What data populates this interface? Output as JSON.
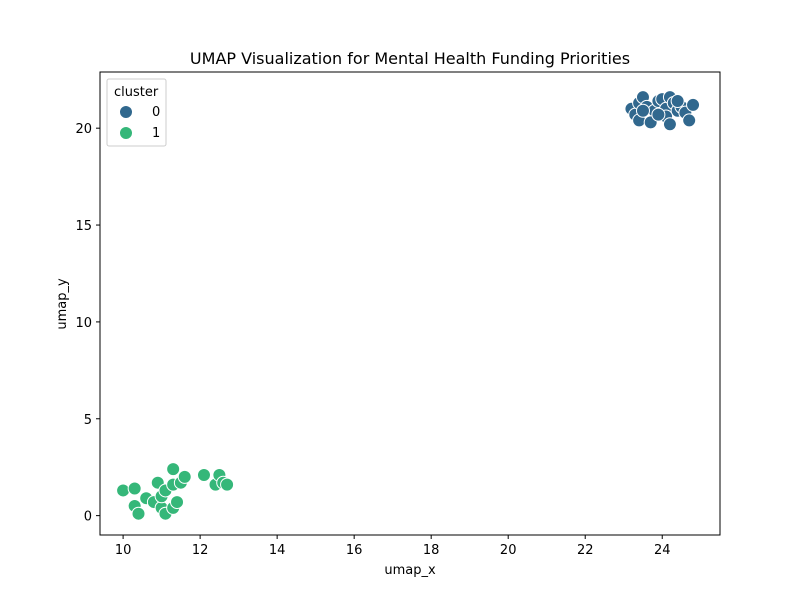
{
  "chart_data": {
    "type": "scatter",
    "title": "UMAP Visualization for Mental Health Funding Priorities",
    "xlabel": "umap_x",
    "ylabel": "umap_y",
    "xlim": [
      9.4,
      25.5
    ],
    "ylim": [
      -1.0,
      22.9
    ],
    "xticks": [
      10,
      12,
      14,
      16,
      18,
      20,
      22,
      24
    ],
    "yticks": [
      0,
      5,
      10,
      15,
      20
    ],
    "grid": false,
    "legend": {
      "title": "cluster",
      "placement": "top-left"
    },
    "series": [
      {
        "name": "0",
        "color": "#31688e",
        "points": [
          [
            23.2,
            21.0
          ],
          [
            23.3,
            20.7
          ],
          [
            23.4,
            21.3
          ],
          [
            23.5,
            21.6
          ],
          [
            23.6,
            21.1
          ],
          [
            23.8,
            20.9
          ],
          [
            23.9,
            21.4
          ],
          [
            24.0,
            21.5
          ],
          [
            24.1,
            21.0
          ],
          [
            24.2,
            21.6
          ],
          [
            24.3,
            21.3
          ],
          [
            24.4,
            20.9
          ],
          [
            24.5,
            21.1
          ],
          [
            24.6,
            20.8
          ],
          [
            24.8,
            21.2
          ],
          [
            23.4,
            20.4
          ],
          [
            23.7,
            20.3
          ],
          [
            24.1,
            20.6
          ],
          [
            24.2,
            20.2
          ],
          [
            24.7,
            20.4
          ],
          [
            23.5,
            20.9
          ],
          [
            23.9,
            20.7
          ],
          [
            24.4,
            21.4
          ]
        ]
      },
      {
        "name": "1",
        "color": "#35b779",
        "points": [
          [
            10.0,
            1.3
          ],
          [
            10.3,
            1.4
          ],
          [
            10.3,
            0.5
          ],
          [
            10.4,
            0.1
          ],
          [
            10.6,
            0.9
          ],
          [
            10.8,
            0.7
          ],
          [
            10.9,
            1.7
          ],
          [
            11.0,
            0.4
          ],
          [
            11.0,
            1.0
          ],
          [
            11.1,
            1.3
          ],
          [
            11.1,
            0.1
          ],
          [
            11.3,
            0.4
          ],
          [
            11.3,
            1.6
          ],
          [
            11.4,
            0.7
          ],
          [
            11.3,
            2.4
          ],
          [
            11.5,
            1.7
          ],
          [
            11.6,
            2.0
          ],
          [
            12.1,
            2.1
          ],
          [
            12.4,
            1.6
          ],
          [
            12.5,
            2.1
          ],
          [
            12.6,
            1.7
          ],
          [
            12.7,
            1.6
          ]
        ]
      }
    ]
  }
}
